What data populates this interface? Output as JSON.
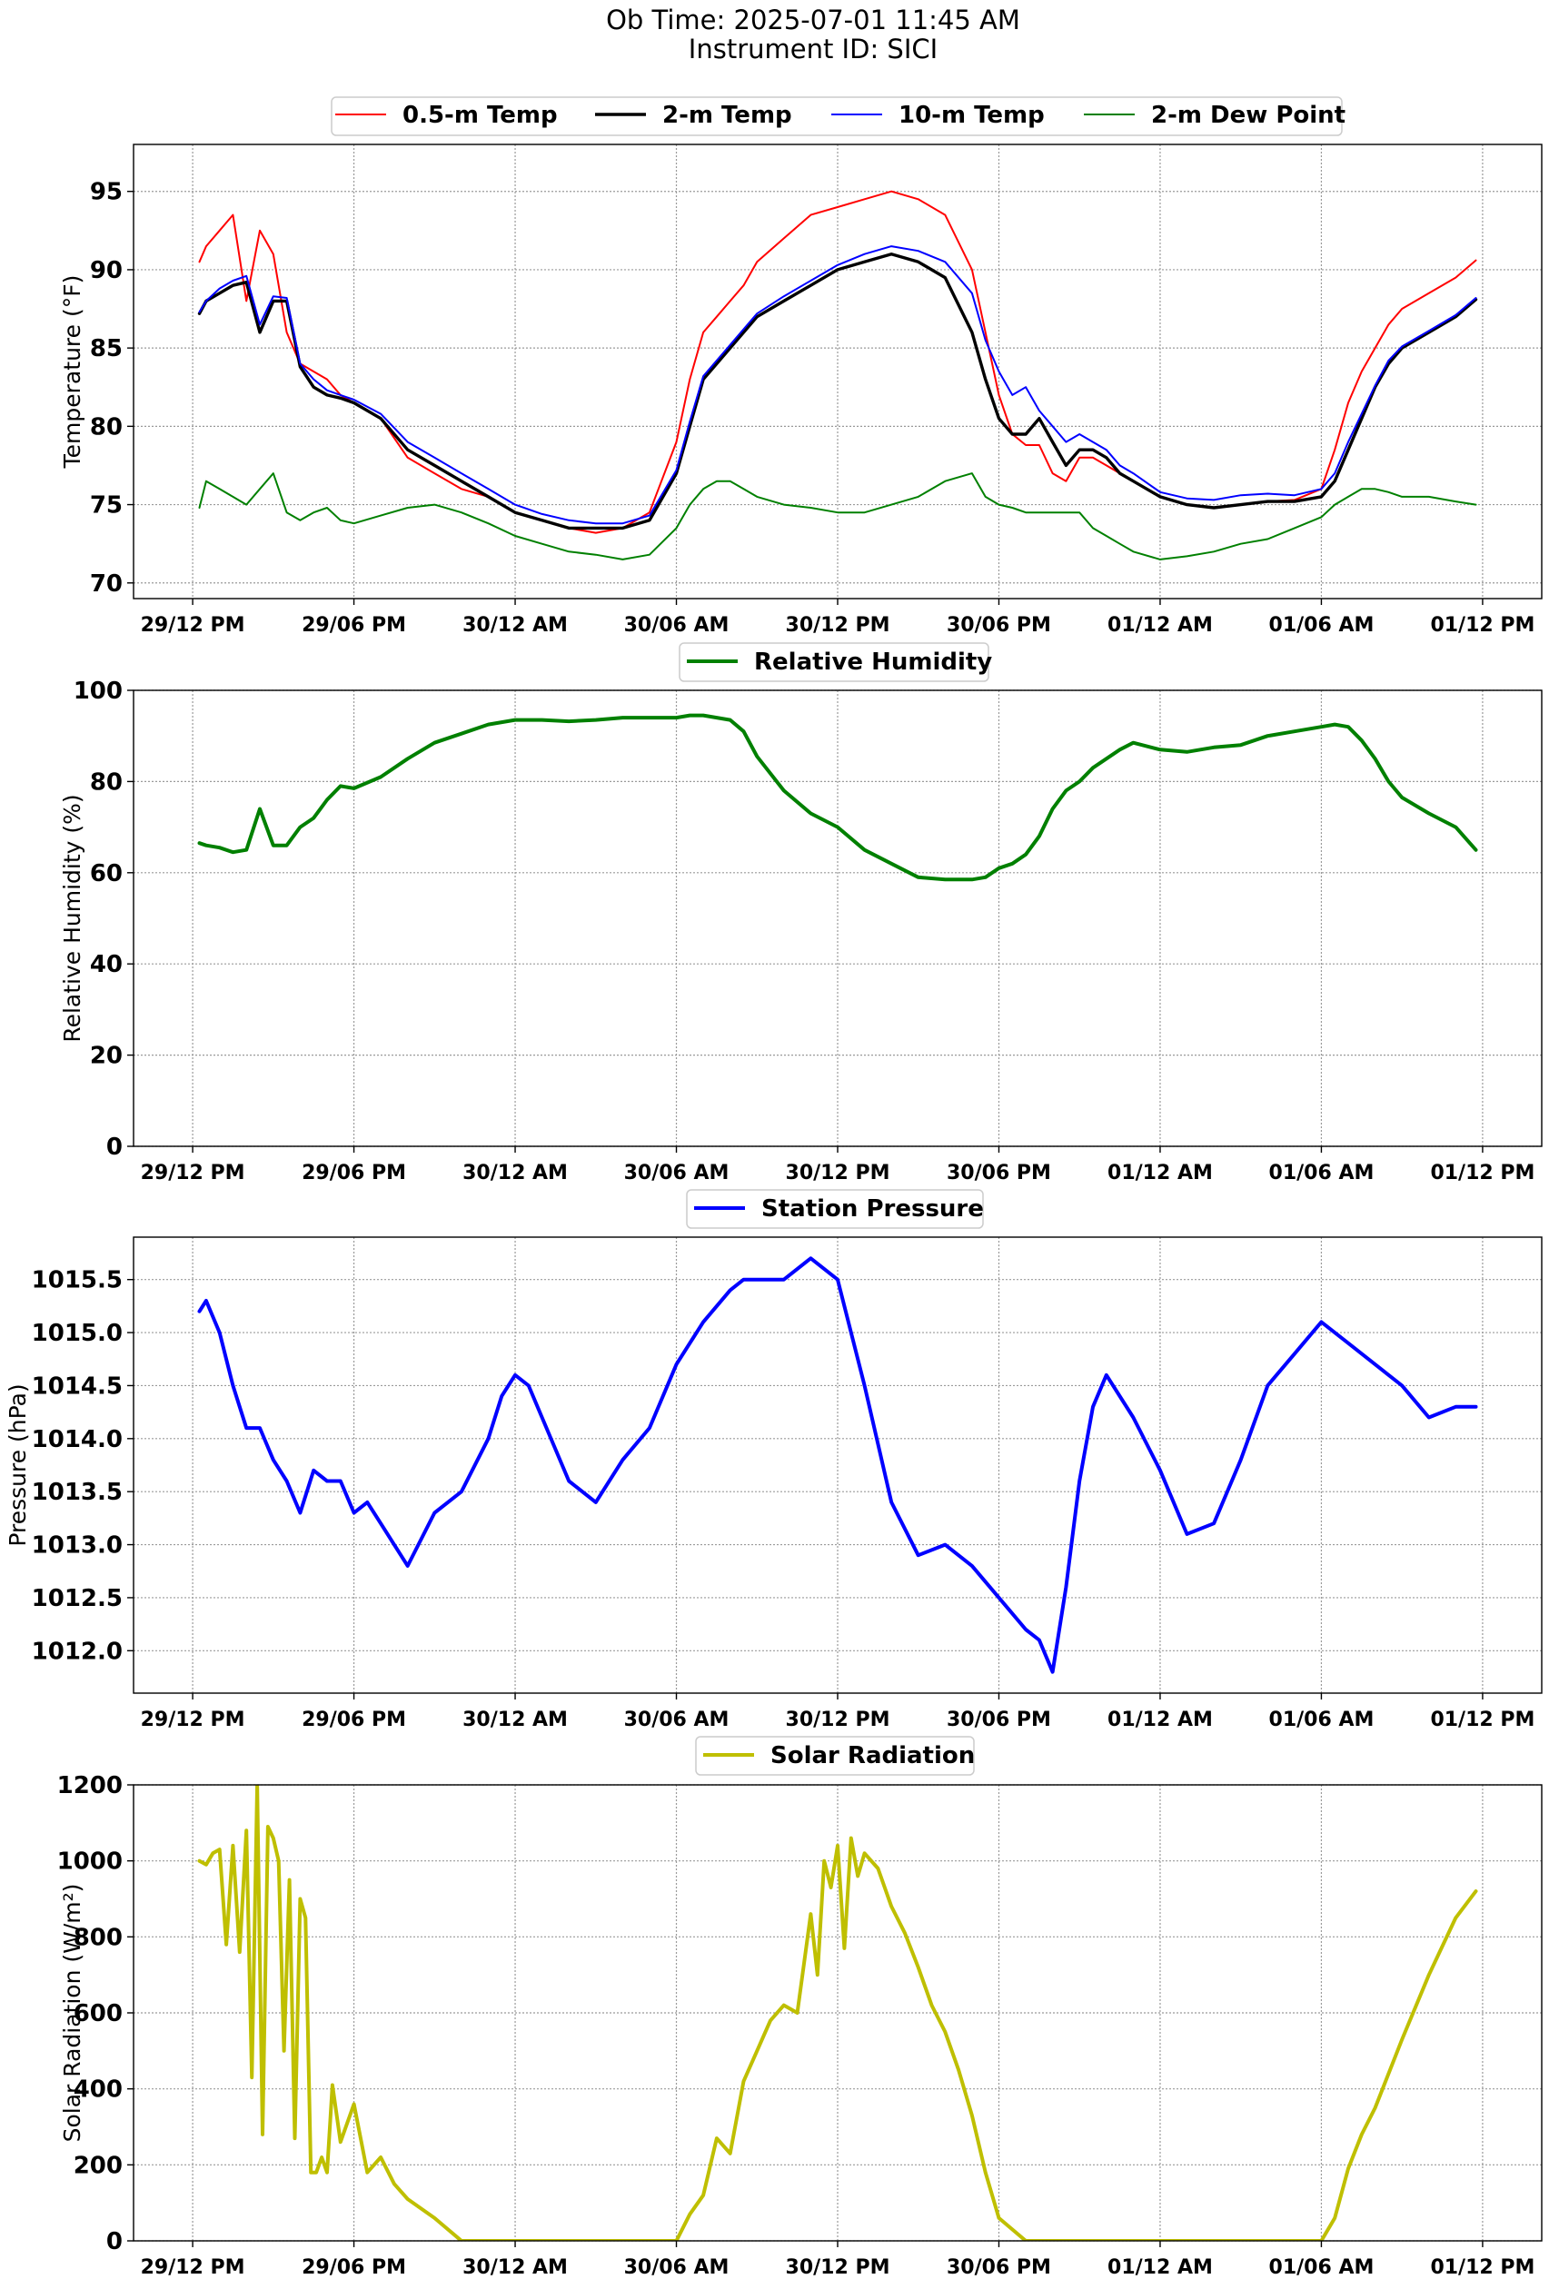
{
  "header": {
    "ob_time": "Ob Time: 2025-07-01 11:45 AM",
    "instrument": "Instrument ID: SICI"
  },
  "x_axis": {
    "tick_labels": [
      "29/12 PM",
      "29/06 PM",
      "30/12 AM",
      "30/06 AM",
      "30/12 PM",
      "30/06 PM",
      "01/12 AM",
      "01/06 AM",
      "01/12 PM"
    ],
    "tick_hours": [
      0,
      6,
      12,
      18,
      24,
      30,
      36,
      42,
      48
    ],
    "range_hours": [
      -2.2,
      50.2
    ]
  },
  "chart_data": [
    {
      "type": "line",
      "ylabel": "Temperature (°F)",
      "ylim": [
        69.0,
        98.0
      ],
      "yticks": [
        70,
        75,
        80,
        85,
        90,
        95
      ],
      "ytick_labels": [
        "70",
        "75",
        "80",
        "85",
        "90",
        "95"
      ],
      "grid": true,
      "legend": "top-center",
      "x": [
        0.25,
        0.5,
        1,
        1.5,
        2,
        2.5,
        3,
        3.5,
        4,
        4.5,
        5,
        5.5,
        6,
        7,
        8,
        9,
        10,
        11,
        12,
        13,
        14,
        15,
        16,
        17,
        18,
        18.5,
        19,
        19.5,
        20,
        20.5,
        21,
        22,
        23,
        24,
        25,
        26,
        27,
        28,
        29,
        29.5,
        30,
        30.5,
        31,
        31.5,
        32,
        32.5,
        33,
        33.5,
        34,
        34.5,
        35,
        36,
        37,
        38,
        39,
        40,
        41,
        42,
        42.5,
        43,
        43.5,
        44,
        44.5,
        45,
        46,
        47,
        47.75
      ],
      "series": [
        {
          "name": "0.5-m Temp",
          "color": "#ff0000",
          "width": 2,
          "values": [
            90.5,
            91.5,
            92.5,
            93.5,
            88.0,
            92.5,
            91.0,
            86.0,
            84.0,
            83.5,
            83.0,
            82.0,
            81.5,
            80.5,
            78.0,
            77.0,
            76.0,
            75.5,
            74.5,
            74.0,
            73.5,
            73.2,
            73.5,
            74.5,
            79.0,
            83.0,
            86.0,
            87.0,
            88.0,
            89.0,
            90.5,
            92.0,
            93.5,
            94.0,
            94.5,
            95.0,
            94.5,
            93.5,
            90.0,
            86.0,
            82.0,
            79.5,
            78.8,
            78.8,
            77.0,
            76.5,
            78.0,
            78.0,
            77.5,
            77.0,
            76.5,
            75.5,
            75.0,
            74.8,
            75.0,
            75.2,
            75.3,
            76.0,
            78.5,
            81.5,
            83.5,
            85.0,
            86.5,
            87.5,
            88.5,
            89.5,
            90.6
          ]
        },
        {
          "name": "2-m Temp",
          "color": "#000000",
          "width": 3.4,
          "values": [
            87.2,
            88.0,
            88.5,
            89.0,
            89.2,
            86.0,
            88.0,
            88.0,
            83.8,
            82.5,
            82.0,
            81.8,
            81.5,
            80.5,
            78.5,
            77.5,
            76.5,
            75.5,
            74.5,
            74.0,
            73.5,
            73.5,
            73.5,
            74.0,
            77.0,
            80.0,
            83.0,
            84.0,
            85.0,
            86.0,
            87.0,
            88.0,
            89.0,
            90.0,
            90.5,
            91.0,
            90.5,
            89.5,
            86.0,
            83.0,
            80.5,
            79.5,
            79.5,
            80.5,
            79.0,
            77.5,
            78.5,
            78.5,
            78.0,
            77.0,
            76.5,
            75.5,
            75.0,
            74.8,
            75.0,
            75.2,
            75.2,
            75.5,
            76.5,
            78.5,
            80.5,
            82.5,
            84.0,
            85.0,
            86.0,
            87.0,
            88.1
          ]
        },
        {
          "name": "10-m Temp",
          "color": "#0000ff",
          "width": 2,
          "values": [
            87.3,
            88.0,
            88.8,
            89.3,
            89.6,
            86.5,
            88.3,
            88.2,
            84.0,
            83.0,
            82.3,
            82.0,
            81.7,
            80.8,
            79.0,
            78.0,
            77.0,
            76.0,
            75.0,
            74.4,
            74.0,
            73.8,
            73.8,
            74.3,
            77.2,
            80.3,
            83.2,
            84.2,
            85.2,
            86.2,
            87.2,
            88.3,
            89.3,
            90.3,
            91.0,
            91.5,
            91.2,
            90.5,
            88.5,
            85.5,
            83.5,
            82.0,
            82.5,
            81.0,
            80.0,
            79.0,
            79.5,
            79.0,
            78.5,
            77.5,
            77.0,
            75.8,
            75.4,
            75.3,
            75.6,
            75.7,
            75.6,
            76.0,
            77.0,
            79.0,
            80.8,
            82.6,
            84.2,
            85.1,
            86.1,
            87.1,
            88.2
          ]
        },
        {
          "name": "2-m Dew Point",
          "color": "#008000",
          "width": 2,
          "values": [
            74.8,
            76.5,
            76.0,
            75.5,
            75.0,
            76.0,
            77.0,
            74.5,
            74.0,
            74.5,
            74.8,
            74.0,
            73.8,
            74.3,
            74.8,
            75.0,
            74.5,
            73.8,
            73.0,
            72.5,
            72.0,
            71.8,
            71.5,
            71.8,
            73.5,
            75.0,
            76.0,
            76.5,
            76.5,
            76.0,
            75.5,
            75.0,
            74.8,
            74.5,
            74.5,
            75.0,
            75.5,
            76.5,
            77.0,
            75.5,
            75.0,
            74.8,
            74.5,
            74.5,
            74.5,
            74.5,
            74.5,
            73.5,
            73.0,
            72.5,
            72.0,
            71.5,
            71.7,
            72.0,
            72.5,
            72.8,
            73.5,
            74.2,
            75.0,
            75.5,
            76.0,
            76.0,
            75.8,
            75.5,
            75.5,
            75.2,
            75.0
          ]
        }
      ]
    },
    {
      "type": "line",
      "ylabel": "Relative Humidity (%)",
      "ylim": [
        0,
        100
      ],
      "yticks": [
        0,
        20,
        40,
        60,
        80,
        100
      ],
      "ytick_labels": [
        "0",
        "20",
        "40",
        "60",
        "80",
        "100"
      ],
      "grid": true,
      "legend": "top-center",
      "x": [
        0.25,
        0.5,
        1,
        1.5,
        2,
        2.5,
        3,
        3.5,
        4,
        4.5,
        5,
        5.5,
        6,
        7,
        8,
        9,
        10,
        11,
        12,
        13,
        14,
        15,
        16,
        17,
        18,
        18.5,
        19,
        19.5,
        20,
        20.5,
        21,
        22,
        23,
        24,
        25,
        26,
        27,
        28,
        29,
        29.5,
        30,
        30.5,
        31,
        31.5,
        32,
        32.5,
        33,
        33.5,
        34,
        34.5,
        35,
        36,
        37,
        38,
        39,
        40,
        41,
        42,
        42.5,
        43,
        43.5,
        44,
        44.5,
        45,
        46,
        47,
        47.75
      ],
      "series": [
        {
          "name": "Relative Humidity",
          "color": "#008000",
          "width": 4,
          "values": [
            66.5,
            66.0,
            65.5,
            64.5,
            65.0,
            74.0,
            66.0,
            66.0,
            70.0,
            72.0,
            76.0,
            79.0,
            78.5,
            81.0,
            85.0,
            88.5,
            90.5,
            92.5,
            93.5,
            93.5,
            93.2,
            93.5,
            94.0,
            94.0,
            94.0,
            94.5,
            94.5,
            94.0,
            93.5,
            91.0,
            85.5,
            78.0,
            73.0,
            70.0,
            65.0,
            62.0,
            59.0,
            58.5,
            58.5,
            59.0,
            61.0,
            62.0,
            64.0,
            68.0,
            74.0,
            78.0,
            80.0,
            83.0,
            85.0,
            87.0,
            88.5,
            87.0,
            86.5,
            87.5,
            88.0,
            90.0,
            91.0,
            92.0,
            92.5,
            92.0,
            89.0,
            85.0,
            80.0,
            76.5,
            73.0,
            70.0,
            65.0
          ]
        }
      ]
    },
    {
      "type": "line",
      "ylabel": "Pressure (hPa)",
      "ylim": [
        1011.6,
        1015.9
      ],
      "yticks": [
        1012.0,
        1012.5,
        1013.0,
        1013.5,
        1014.0,
        1014.5,
        1015.0,
        1015.5
      ],
      "ytick_labels": [
        "1012.0",
        "1012.5",
        "1013.0",
        "1013.5",
        "1014.0",
        "1014.5",
        "1015.0",
        "1015.5"
      ],
      "grid": true,
      "legend": "top-center",
      "x": [
        0.25,
        0.5,
        1,
        1.5,
        2,
        2.5,
        3,
        3.5,
        4,
        4.5,
        5,
        5.5,
        6,
        6.5,
        7,
        7.5,
        8,
        9,
        10,
        11,
        11.5,
        12,
        12.5,
        13,
        14,
        15,
        16,
        17,
        18,
        19,
        20,
        20.5,
        21,
        22,
        23,
        24,
        25,
        26,
        27,
        28,
        29,
        30,
        31,
        31.5,
        32,
        32.5,
        33,
        33.5,
        34,
        35,
        36,
        37,
        38,
        39,
        40,
        41,
        42,
        42.5,
        43,
        44,
        45,
        46,
        47,
        47.75
      ],
      "series": [
        {
          "name": "Station Pressure",
          "color": "#0000ff",
          "width": 4,
          "values": [
            1015.2,
            1015.3,
            1015.0,
            1014.5,
            1014.1,
            1014.1,
            1013.8,
            1013.6,
            1013.3,
            1013.7,
            1013.6,
            1013.6,
            1013.3,
            1013.4,
            1013.2,
            1013.0,
            1012.8,
            1013.3,
            1013.5,
            1014.0,
            1014.4,
            1014.6,
            1014.5,
            1014.2,
            1013.6,
            1013.4,
            1013.8,
            1014.1,
            1014.7,
            1015.1,
            1015.4,
            1015.5,
            1015.5,
            1015.5,
            1015.7,
            1015.5,
            1014.5,
            1013.4,
            1012.9,
            1013.0,
            1012.8,
            1012.5,
            1012.2,
            1012.1,
            1011.8,
            1012.6,
            1013.6,
            1014.3,
            1014.6,
            1014.2,
            1013.7,
            1013.1,
            1013.2,
            1013.8,
            1014.5,
            1014.8,
            1015.1,
            1015.0,
            1014.9,
            1014.7,
            1014.5,
            1014.2,
            1014.3,
            1014.3
          ]
        }
      ]
    },
    {
      "type": "line",
      "ylabel": "Solar Radiation (W/m²)",
      "ylim": [
        0,
        1200
      ],
      "yticks": [
        0,
        200,
        400,
        600,
        800,
        1000,
        1200
      ],
      "ytick_labels": [
        "0",
        "200",
        "400",
        "600",
        "800",
        "1000",
        "1200"
      ],
      "grid": true,
      "legend": "top-center",
      "x": [
        0.25,
        0.5,
        0.75,
        1,
        1.25,
        1.5,
        1.75,
        2,
        2.2,
        2.4,
        2.6,
        2.8,
        3,
        3.2,
        3.4,
        3.6,
        3.8,
        4,
        4.2,
        4.4,
        4.6,
        4.8,
        5,
        5.2,
        5.5,
        6,
        6.5,
        7,
        7.5,
        8,
        9,
        10,
        12,
        14,
        16,
        17,
        18,
        18.5,
        19,
        19.5,
        20,
        20.5,
        21,
        21.5,
        22,
        22.5,
        23,
        23.25,
        23.5,
        23.75,
        24,
        24.25,
        24.5,
        24.75,
        25,
        25.5,
        26,
        26.5,
        27,
        27.5,
        28,
        28.5,
        29,
        29.5,
        30,
        31,
        32,
        34,
        36,
        38,
        40,
        42,
        42.5,
        43,
        43.5,
        44,
        45,
        46,
        47,
        47.75
      ],
      "series": [
        {
          "name": "Solar Radiation",
          "color": "#bfbf00",
          "width": 4,
          "values": [
            1000,
            990,
            1020,
            1030,
            780,
            1040,
            760,
            1080,
            430,
            1200,
            280,
            1090,
            1060,
            1000,
            500,
            950,
            270,
            900,
            850,
            180,
            180,
            220,
            180,
            410,
            260,
            360,
            180,
            220,
            150,
            110,
            60,
            0,
            0,
            0,
            0,
            0,
            0,
            70,
            120,
            270,
            230,
            420,
            500,
            580,
            620,
            600,
            860,
            700,
            1000,
            930,
            1040,
            770,
            1060,
            960,
            1020,
            980,
            880,
            810,
            720,
            620,
            550,
            450,
            330,
            180,
            60,
            0,
            0,
            0,
            0,
            0,
            0,
            0,
            60,
            190,
            280,
            350,
            530,
            700,
            850,
            920
          ]
        }
      ]
    }
  ]
}
